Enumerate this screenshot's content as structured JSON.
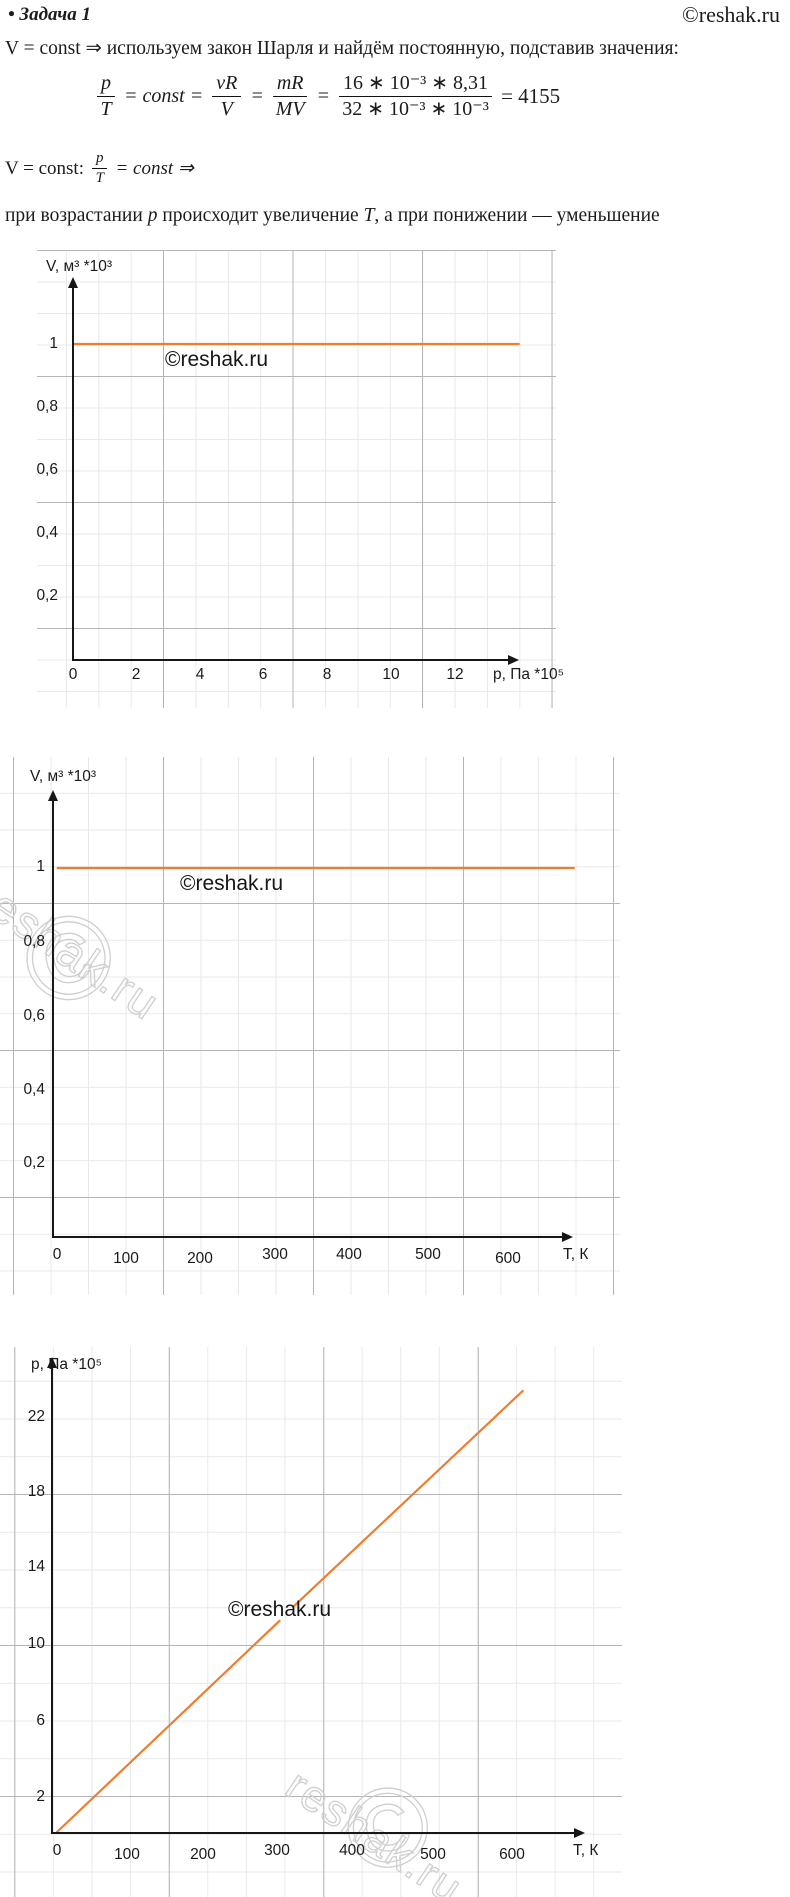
{
  "header": {
    "title": "• Задача 1",
    "site_credit": "©reshak.ru"
  },
  "text": {
    "line1": "V = const ⇒ используем закон Шарля и найдём постоянную, подставив значения:",
    "line2_prefix": "V = const:",
    "line2_num": "p",
    "line2_den": "T",
    "line2_suffix": "= const  ⇒",
    "line3_parts": [
      "при возрастании ",
      "p",
      " происходит увеличение ",
      "T",
      ", а при понижении — уменьшение"
    ]
  },
  "formula": {
    "num1": "p",
    "den1": "T",
    "mid1": "= const =",
    "num2": "vR",
    "den2": "V",
    "mid2": "=",
    "num3": "mR",
    "den3": "MV",
    "mid3": "=",
    "num4": "16 ∗ 10⁻³ ∗ 8,31",
    "den4": "32 ∗ 10⁻³ ∗ 10⁻³",
    "result": "= 4155"
  },
  "watermark": {
    "badge": "©reshak.ru",
    "outline_text": "reshak.ru",
    "outline_symbol": "©"
  },
  "chart_data": [
    {
      "type": "line",
      "title": "",
      "ylabel": "V, м³ *10³",
      "xlabel": "p, Па *10⁵",
      "xticks": [
        "0",
        "2",
        "4",
        "6",
        "8",
        "10",
        "12"
      ],
      "yticks": [
        "1",
        "0,8",
        "0,6",
        "0,4",
        "0,2"
      ],
      "xlim": [
        0,
        15
      ],
      "ylim": [
        0,
        1.45
      ],
      "grid": true,
      "legend": "none",
      "line_color": "#ed7d31",
      "series": [
        {
          "segments": [
            [
              [
                0,
                1
              ],
              [
                14,
                1
              ]
            ]
          ]
        }
      ]
    },
    {
      "type": "line",
      "title": "",
      "ylabel": "V, м³ *10³",
      "xlabel": "Т, К",
      "xticks": [
        "0",
        "100",
        "200",
        "300",
        "400",
        "500",
        "600"
      ],
      "yticks": [
        "1",
        "0,8",
        "0,6",
        "0,4",
        "0,2"
      ],
      "xlim": [
        0,
        760
      ],
      "ylim": [
        0,
        1.45
      ],
      "grid": true,
      "legend": "none",
      "line_color": "#ed7d31",
      "series": [
        {
          "segments": [
            [
              [
                5,
                1
              ],
              [
                705,
                1
              ]
            ]
          ]
        }
      ]
    },
    {
      "type": "line",
      "title": "",
      "ylabel": "p, Па *10⁵",
      "xlabel": "Т, К",
      "xticks": [
        "0",
        "100",
        "200",
        "300",
        "400",
        "500",
        "600"
      ],
      "yticks": [
        "22",
        "18",
        "14",
        "10",
        "6",
        "2"
      ],
      "xlim": [
        0,
        700
      ],
      "ylim": [
        0,
        25
      ],
      "grid": true,
      "legend": "none",
      "line_color": "#ed7d31",
      "series": [
        {
          "segments": [
            [
              [
                0,
                0
              ],
              [
                295,
                11.2
              ]
            ],
            [
              [
                312,
                11.9
              ],
              [
                615,
                23.3
              ]
            ]
          ]
        }
      ]
    }
  ]
}
